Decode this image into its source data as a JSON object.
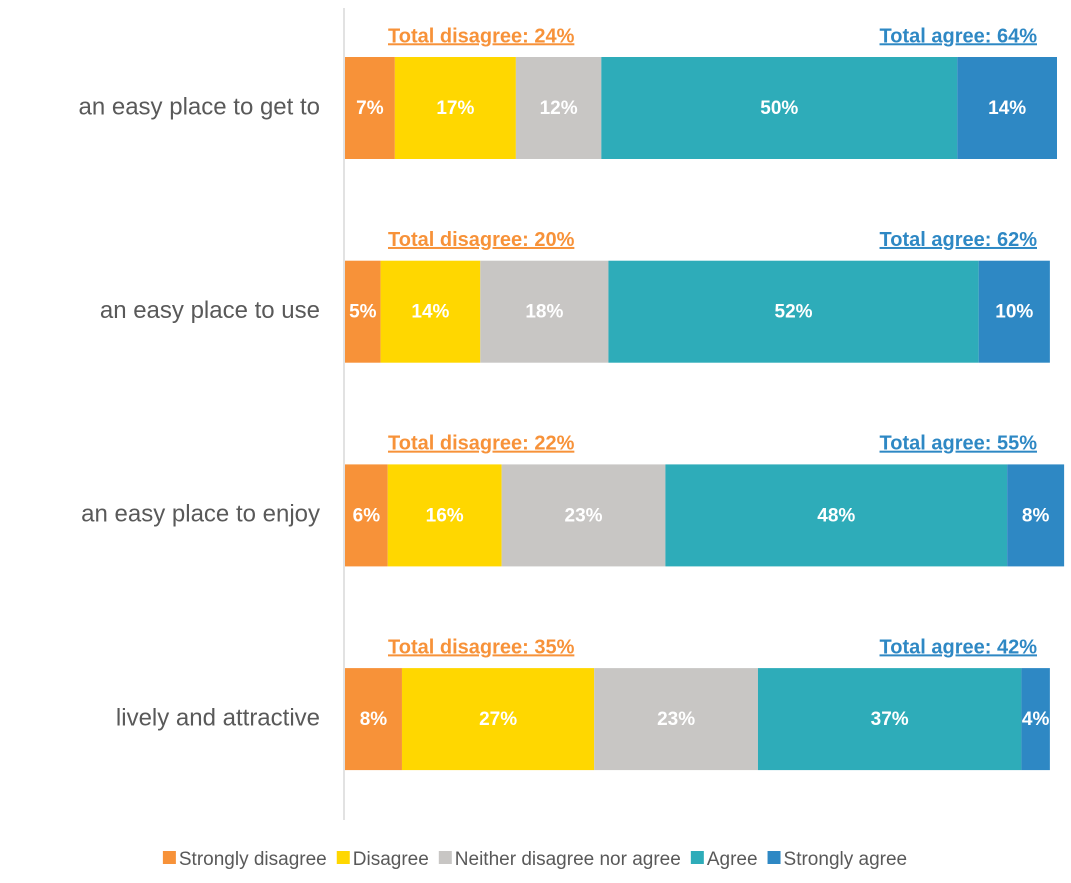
{
  "chart_data": {
    "type": "bar",
    "orientation": "horizontal",
    "stacked": true,
    "categories": [
      "an easy place to get to",
      "an easy place to use",
      "an easy place to enjoy",
      "lively and attractive"
    ],
    "xlim": [
      0,
      100
    ],
    "series": [
      {
        "name": "Strongly disagree",
        "color": "#f79239",
        "values": [
          7,
          5,
          6,
          8
        ],
        "value_labels": [
          "7%",
          "5%",
          "6%",
          "8%"
        ]
      },
      {
        "name": "Disagree",
        "color": "#ffd700",
        "values": [
          17,
          14,
          16,
          27
        ],
        "value_labels": [
          "17%",
          "14%",
          "16%",
          "27%"
        ]
      },
      {
        "name": "Neither disagree nor agree",
        "color": "#c8c6c4",
        "values": [
          12,
          18,
          23,
          23
        ],
        "value_labels": [
          "12%",
          "18%",
          "23%",
          "23%"
        ]
      },
      {
        "name": "Agree",
        "color": "#2eacb9",
        "values": [
          50,
          52,
          48,
          37
        ],
        "value_labels": [
          "50%",
          "52%",
          "48%",
          "37%"
        ]
      },
      {
        "name": "Strongly agree",
        "color": "#2e88c4",
        "values": [
          14,
          10,
          8,
          4
        ],
        "value_labels": [
          "14%",
          "10%",
          "8%",
          "4%"
        ]
      }
    ],
    "annotations": {
      "total_disagree": {
        "color": "#f79239",
        "texts": [
          "Total disagree: 24%",
          "Total disagree: 20%",
          "Total disagree: 22%",
          "Total disagree: 35%"
        ]
      },
      "total_agree": {
        "color": "#2e88c4",
        "texts": [
          "Total agree: 64%",
          "Total agree: 62%",
          "Total agree: 55%",
          "Total agree: 42%"
        ]
      }
    },
    "legend": "bottom"
  }
}
